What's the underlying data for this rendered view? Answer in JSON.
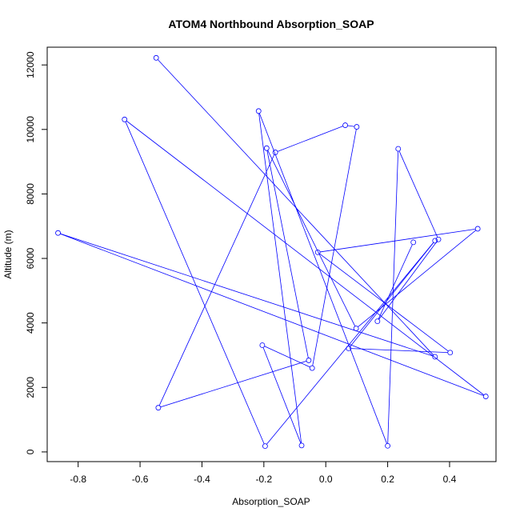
{
  "chart_data": {
    "type": "line",
    "title": "ATOM4 Northbound Absorption_SOAP",
    "xlabel": "Absorption_SOAP",
    "ylabel": "Altitude (m)",
    "xlim": [
      -0.9,
      0.55
    ],
    "ylim": [
      -300,
      12550
    ],
    "x_ticks": [
      -0.8,
      -0.6,
      -0.4,
      -0.2,
      0.0,
      0.2,
      0.4
    ],
    "x_tick_labels": [
      "-0.8",
      "-0.6",
      "-0.4",
      "-0.2",
      "0.0",
      "0.2",
      "0.4"
    ],
    "y_ticks": [
      0,
      2000,
      4000,
      6000,
      8000,
      10000,
      12000
    ],
    "y_tick_labels": [
      "0",
      "2000",
      "4000",
      "6000",
      "8000",
      "10000",
      "12000"
    ],
    "grid": false,
    "series": [
      {
        "color": "#0000ff",
        "marker": "open-circle",
        "points": [
          {
            "x": -0.548,
            "y": 12220
          },
          {
            "x": 0.353,
            "y": 2950
          },
          {
            "x": -0.865,
            "y": 6790
          },
          {
            "x": 0.517,
            "y": 1720
          },
          {
            "x": -0.65,
            "y": 10310
          },
          {
            "x": -0.196,
            "y": 180
          },
          {
            "x": 0.353,
            "y": 6550
          },
          {
            "x": 0.074,
            "y": 3210
          },
          {
            "x": 0.402,
            "y": 3080
          },
          {
            "x": -0.026,
            "y": 6190
          },
          {
            "x": 0.491,
            "y": 6920
          },
          {
            "x": 0.098,
            "y": 3830
          },
          {
            "x": -0.191,
            "y": 9420
          },
          {
            "x": -0.055,
            "y": 2840
          },
          {
            "x": -0.541,
            "y": 1370
          },
          {
            "x": -0.163,
            "y": 9290
          },
          {
            "x": 0.063,
            "y": 10130
          },
          {
            "x": 0.1,
            "y": 10080
          },
          {
            "x": -0.044,
            "y": 2600
          },
          {
            "x": -0.205,
            "y": 3310
          },
          {
            "x": -0.078,
            "y": 200
          },
          {
            "x": -0.217,
            "y": 10570
          },
          {
            "x": 0.2,
            "y": 190
          },
          {
            "x": 0.234,
            "y": 9400
          },
          {
            "x": 0.364,
            "y": 6590
          },
          {
            "x": 0.167,
            "y": 4050
          },
          {
            "x": 0.283,
            "y": 6500
          }
        ]
      }
    ]
  }
}
